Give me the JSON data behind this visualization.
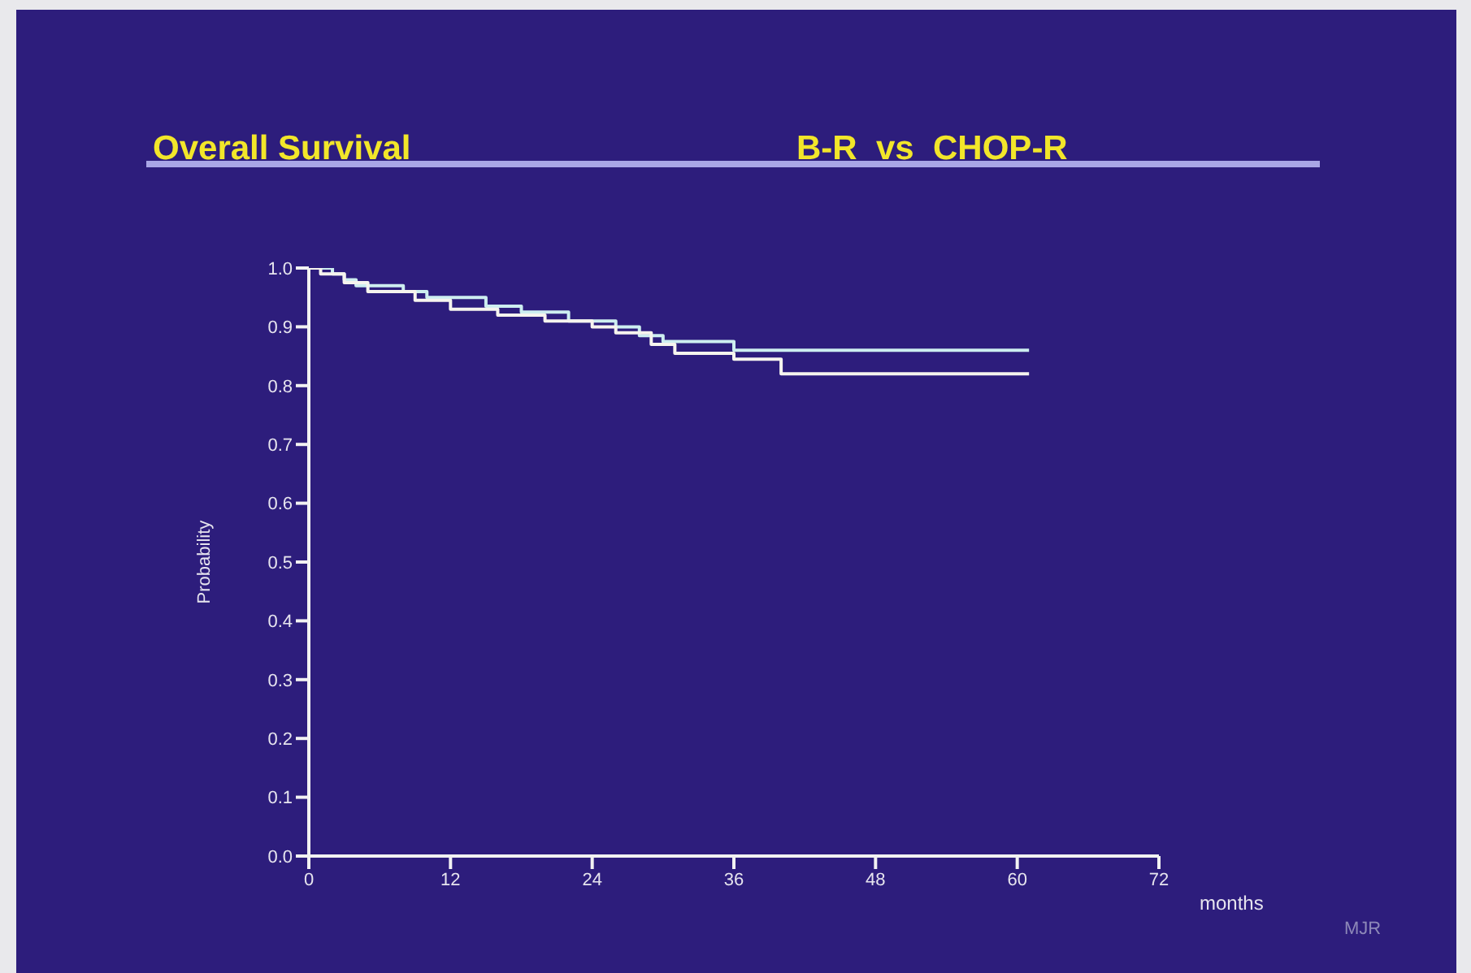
{
  "chart_data": {
    "type": "step",
    "title": "Overall Survival",
    "subtitle": "B-R  vs  CHOP-R",
    "xlabel": "months",
    "ylabel": "Probability",
    "annotations": [
      "MJR"
    ],
    "xlim": [
      0,
      72
    ],
    "xticks": [
      0,
      12,
      24,
      36,
      48,
      60,
      72
    ],
    "ylim": [
      0,
      1
    ],
    "yticks": [
      {
        "value": 0,
        "label": "0.0"
      },
      0.1,
      0.2,
      0.3,
      0.4,
      0.5,
      0.6,
      0.7,
      0.8,
      0.9,
      {
        "value": 1,
        "label": "1.0"
      }
    ],
    "grid": false,
    "marker": "none",
    "line_style": "solid",
    "series": [
      {
        "color": "#cdeef0",
        "x": [
          0,
          2,
          3,
          4,
          8,
          10,
          15,
          18,
          22,
          26,
          28,
          30,
          36,
          61
        ],
        "values": [
          1.0,
          0.99,
          0.98,
          0.97,
          0.96,
          0.95,
          0.935,
          0.925,
          0.91,
          0.9,
          0.885,
          0.875,
          0.86,
          0.86
        ]
      },
      {
        "color": "#f6f4ee",
        "x": [
          0,
          1,
          3,
          5,
          9,
          12,
          16,
          20,
          24,
          26,
          29,
          31,
          36,
          40,
          61
        ],
        "values": [
          1.0,
          0.99,
          0.975,
          0.96,
          0.945,
          0.93,
          0.92,
          0.91,
          0.9,
          0.89,
          0.87,
          0.855,
          0.845,
          0.82,
          0.82
        ]
      }
    ]
  }
}
